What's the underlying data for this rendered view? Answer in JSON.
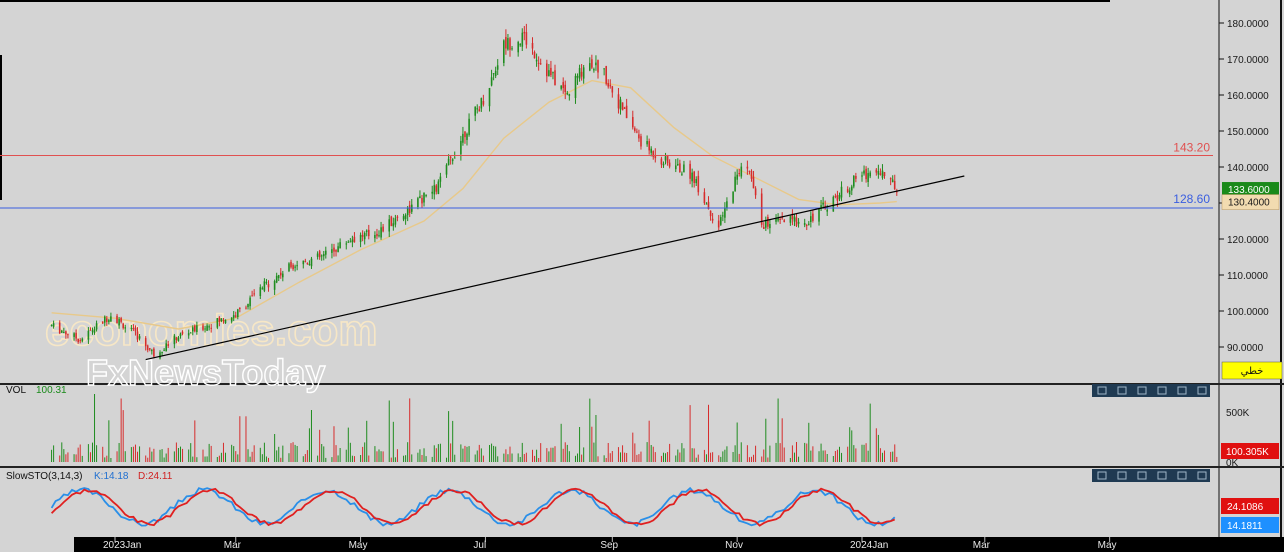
{
  "chart_data": {
    "type": "candlestick",
    "price": {
      "yticks": [
        "180.0000",
        "170.0000",
        "160.0000",
        "150.0000",
        "140.0000",
        "130.0000",
        "120.0000",
        "110.0000",
        "100.0000",
        "90.0000"
      ],
      "ylim": [
        80,
        184
      ],
      "current_price": "133.6000",
      "ma_value": "130.4000",
      "resistance": {
        "value": 143.2,
        "label": "143.20"
      },
      "support": {
        "value": 128.6,
        "label": "128.60"
      },
      "trendline": {
        "start": {
          "x": "2023-01-16",
          "y": 86.5
        },
        "end": {
          "x": "2024-02-20",
          "y": 137.5
        }
      },
      "close_path": [
        [
          "2022-12-01",
          96
        ],
        [
          "2022-12-15",
          92
        ],
        [
          "2022-12-30",
          99
        ],
        [
          "2023-01-12",
          93
        ],
        [
          "2023-01-20",
          88
        ],
        [
          "2023-02-01",
          93
        ],
        [
          "2023-02-15",
          96
        ],
        [
          "2023-03-01",
          99
        ],
        [
          "2023-03-15",
          107
        ],
        [
          "2023-03-29",
          113
        ],
        [
          "2023-04-12",
          115
        ],
        [
          "2023-04-26",
          120
        ],
        [
          "2023-05-10",
          122
        ],
        [
          "2023-05-24",
          128
        ],
        [
          "2023-06-07",
          134
        ],
        [
          "2023-06-21",
          150
        ],
        [
          "2023-07-01",
          160
        ],
        [
          "2023-07-10",
          174
        ],
        [
          "2023-07-20",
          176
        ],
        [
          "2023-08-01",
          166
        ],
        [
          "2023-08-10",
          160
        ],
        [
          "2023-08-20",
          170
        ],
        [
          "2023-08-28",
          166
        ],
        [
          "2023-09-05",
          157
        ],
        [
          "2023-09-15",
          147
        ],
        [
          "2023-09-25",
          142
        ],
        [
          "2023-10-10",
          138
        ],
        [
          "2023-10-23",
          123
        ],
        [
          "2023-11-01",
          138
        ],
        [
          "2023-11-06",
          141
        ],
        [
          "2023-11-13",
          124
        ],
        [
          "2023-11-25",
          125
        ],
        [
          "2023-12-05",
          125
        ],
        [
          "2023-12-20",
          132
        ],
        [
          "2024-01-01",
          138
        ],
        [
          "2024-01-10",
          139
        ],
        [
          "2024-01-18",
          134
        ]
      ],
      "ma_path": [
        [
          "2022-12-01",
          99.5
        ],
        [
          "2023-01-01",
          98
        ],
        [
          "2023-02-01",
          95
        ],
        [
          "2023-03-01",
          98
        ],
        [
          "2023-04-01",
          108
        ],
        [
          "2023-05-01",
          117
        ],
        [
          "2023-06-01",
          125
        ],
        [
          "2023-06-20",
          134
        ],
        [
          "2023-07-10",
          148
        ],
        [
          "2023-08-01",
          158
        ],
        [
          "2023-08-22",
          164
        ],
        [
          "2023-09-10",
          162
        ],
        [
          "2023-10-01",
          151
        ],
        [
          "2023-10-20",
          143
        ],
        [
          "2023-11-10",
          137
        ],
        [
          "2023-12-01",
          131
        ],
        [
          "2023-12-20",
          129.5
        ],
        [
          "2024-01-10",
          130
        ],
        [
          "2024-01-18",
          130.4
        ]
      ]
    },
    "xaxis": {
      "start": "2022-12-01",
      "ticks": [
        {
          "date": "2023-01-01",
          "label": "2023Jan"
        },
        {
          "date": "2023-03-01",
          "label": "Mar"
        },
        {
          "date": "2023-05-01",
          "label": "May"
        },
        {
          "date": "2023-07-01",
          "label": "Jul"
        },
        {
          "date": "2023-09-01",
          "label": "Sep"
        },
        {
          "date": "2023-11-01",
          "label": "Nov"
        },
        {
          "date": "2024-01-01",
          "label": "2024Jan"
        },
        {
          "date": "2024-03-01",
          "label": "Mar"
        },
        {
          "date": "2024-05-01",
          "label": "May"
        }
      ]
    },
    "volume": {
      "title": "VOL",
      "value": "100.31",
      "ytick": "500K",
      "ytick2": "0K",
      "current": "100.305K"
    },
    "stochastic": {
      "title": "SlowSTO(3,14,3)",
      "k_label": "K:14.18",
      "d_label": "D:24.11",
      "current_d": "24.1086",
      "current_k": "14.1811"
    }
  },
  "toolbar": {
    "right_label": "خطي"
  },
  "watermark": {
    "line1": "economies.com",
    "line2": "FxNewsToday"
  },
  "colors": {
    "background": "#d4d4d4",
    "up": "#1f8c1f",
    "down": "#d62c2c",
    "resistance": "#e05050",
    "support": "#3a5ee0",
    "ma": "#e8c98a",
    "k": "#2a8fe8",
    "d": "#e02020"
  }
}
